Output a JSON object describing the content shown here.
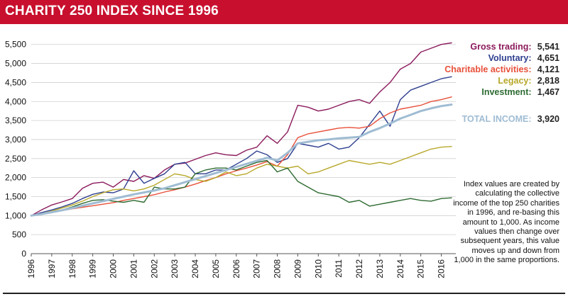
{
  "header": {
    "title": "CHARITY 250 INDEX SINCE 1996"
  },
  "legend": {
    "items": [
      {
        "label": "Gross trading:",
        "value": "5,541",
        "color": "#8b1a5c"
      },
      {
        "label": "Voluntary:",
        "value": "4,651",
        "color": "#2e3f8f"
      },
      {
        "label": "Charitable activities:",
        "value": "4,121",
        "color": "#e8503a"
      },
      {
        "label": "Legacy:",
        "value": "2,818",
        "color": "#b8a82a"
      },
      {
        "label": "Investment:",
        "value": "1,467",
        "color": "#2e6b32"
      }
    ],
    "total": {
      "label": "TOTAL INCOME:",
      "value": "3,920",
      "color": "#9fbcd3"
    }
  },
  "note": "Index values are created by calculating the collective income of the top 250 charities in 1996, and re-basing this amount to 1,000. As income values then change over subsequent years, this value moves up and down from 1,000 in the same proportions.",
  "chart_data": {
    "type": "line",
    "x": [
      1996,
      1996.5,
      1997,
      1997.5,
      1998,
      1998.5,
      1999,
      1999.5,
      2000,
      2000.5,
      2001,
      2001.5,
      2002,
      2002.5,
      2003,
      2003.5,
      2004,
      2004.5,
      2005,
      2005.5,
      2006,
      2006.5,
      2007,
      2007.5,
      2008,
      2008.5,
      2009,
      2009.5,
      2010,
      2010.5,
      2011,
      2011.5,
      2012,
      2012.5,
      2013,
      2013.5,
      2014,
      2014.5,
      2015,
      2015.5,
      2016,
      2016.5
    ],
    "xticks": [
      "1996",
      "1997",
      "1998",
      "1999",
      "2000",
      "2001",
      "2002",
      "2003",
      "2004",
      "2005",
      "2006",
      "2007",
      "2008",
      "2009",
      "2010",
      "2011",
      "2012",
      "2013",
      "2014",
      "2015",
      "2016"
    ],
    "ylim": [
      0,
      5700
    ],
    "yticks": [
      "0",
      "500",
      "1,000",
      "1,500",
      "2,000",
      "2,500",
      "3,000",
      "3,500",
      "4,000",
      "4,500",
      "5,000",
      "5,500"
    ],
    "grid": "horizontal",
    "series": [
      {
        "name": "Gross trading",
        "color": "#8b1a5c",
        "width": 1.4,
        "values": [
          1000,
          1150,
          1280,
          1360,
          1450,
          1720,
          1850,
          1880,
          1750,
          1950,
          1900,
          2050,
          1980,
          2200,
          2350,
          2380,
          2480,
          2580,
          2650,
          2600,
          2580,
          2720,
          2800,
          3100,
          2900,
          3200,
          3900,
          3850,
          3750,
          3800,
          3900,
          4000,
          4050,
          3950,
          4250,
          4500,
          4850,
          5000,
          5300,
          5400,
          5500,
          5541
        ]
      },
      {
        "name": "Voluntary",
        "color": "#2e3f8f",
        "width": 1.4,
        "values": [
          1000,
          1080,
          1150,
          1230,
          1320,
          1450,
          1560,
          1620,
          1600,
          1700,
          2180,
          1850,
          1980,
          2100,
          2350,
          2400,
          2100,
          2100,
          2200,
          2200,
          2350,
          2500,
          2700,
          2600,
          2400,
          2500,
          2900,
          2850,
          2800,
          2900,
          2750,
          2800,
          3050,
          3400,
          3750,
          3350,
          4050,
          4300,
          4400,
          4500,
          4600,
          4651
        ]
      },
      {
        "name": "Charitable activities",
        "color": "#e8503a",
        "width": 1.4,
        "values": [
          1000,
          1050,
          1100,
          1130,
          1180,
          1220,
          1260,
          1300,
          1340,
          1400,
          1450,
          1500,
          1550,
          1620,
          1680,
          1750,
          1830,
          1920,
          2000,
          2100,
          2180,
          2250,
          2330,
          2420,
          2300,
          2600,
          3050,
          3150,
          3200,
          3250,
          3300,
          3320,
          3300,
          3350,
          3550,
          3700,
          3800,
          3850,
          3900,
          4000,
          4050,
          4121
        ]
      },
      {
        "name": "Legacy",
        "color": "#b8a82a",
        "width": 1.4,
        "values": [
          1000,
          1050,
          1120,
          1200,
          1280,
          1380,
          1500,
          1600,
          1680,
          1700,
          1650,
          1700,
          1800,
          1950,
          2100,
          2050,
          1950,
          1900,
          2000,
          2150,
          2050,
          2100,
          2250,
          2350,
          2300,
          2250,
          2300,
          2100,
          2150,
          2250,
          2350,
          2450,
          2400,
          2350,
          2400,
          2350,
          2450,
          2550,
          2650,
          2750,
          2800,
          2818
        ]
      },
      {
        "name": "Investment",
        "color": "#2e6b32",
        "width": 1.4,
        "values": [
          1000,
          1040,
          1100,
          1150,
          1230,
          1320,
          1400,
          1420,
          1380,
          1350,
          1400,
          1350,
          1750,
          1700,
          1700,
          1750,
          2100,
          2200,
          2250,
          2250,
          2200,
          2300,
          2400,
          2450,
          2150,
          2250,
          1900,
          1750,
          1600,
          1550,
          1500,
          1350,
          1400,
          1250,
          1300,
          1350,
          1400,
          1450,
          1400,
          1380,
          1450,
          1467
        ]
      },
      {
        "name": "Total income",
        "color": "#9fbcd3",
        "width": 3,
        "values": [
          1000,
          1040,
          1090,
          1140,
          1200,
          1260,
          1320,
          1380,
          1440,
          1500,
          1560,
          1610,
          1660,
          1720,
          1800,
          1880,
          1960,
          2040,
          2120,
          2200,
          2280,
          2360,
          2440,
          2520,
          2450,
          2650,
          2900,
          2940,
          2980,
          3000,
          3030,
          3050,
          3070,
          3200,
          3300,
          3420,
          3550,
          3650,
          3750,
          3820,
          3880,
          3920
        ]
      }
    ]
  }
}
